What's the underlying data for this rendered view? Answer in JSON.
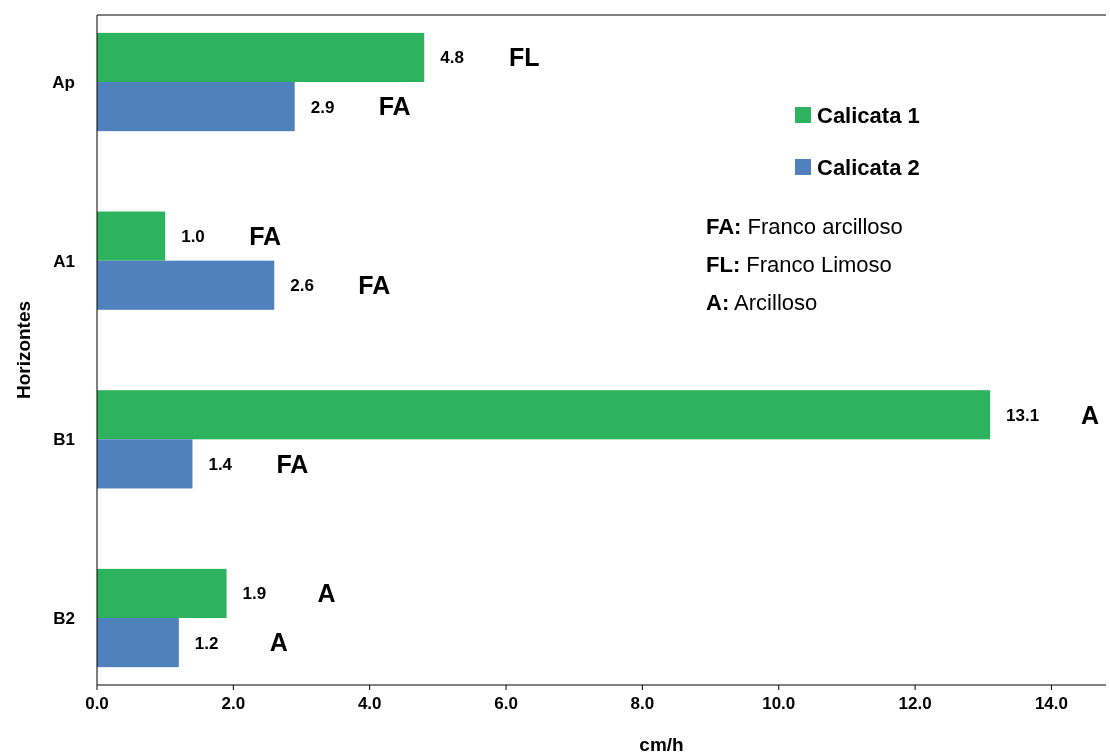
{
  "chart_data": {
    "type": "bar",
    "orientation": "horizontal",
    "xlabel": "cm/h",
    "ylabel": "Horizontes",
    "categories": [
      "Ap",
      "A1",
      "B1",
      "B2"
    ],
    "series": [
      {
        "name": "Calicata 1",
        "color": "#2db35d",
        "values": [
          4.8,
          1.0,
          13.1,
          1.9
        ],
        "value_labels": [
          "4.8",
          "1.0",
          "13.1",
          "1.9"
        ]
      },
      {
        "name": "Calicata 2",
        "color": "#4f81bd",
        "values": [
          2.9,
          2.6,
          1.4,
          1.2
        ],
        "value_labels": [
          "2.9",
          "2.6",
          "1.4",
          "1.2"
        ]
      }
    ],
    "xlim": [
      0,
      14.8
    ],
    "xticks": [
      {
        "value": 0,
        "label": "0.0"
      },
      {
        "value": 2,
        "label": "2.0"
      },
      {
        "value": 4,
        "label": "4.0"
      },
      {
        "value": 6,
        "label": "6.0"
      },
      {
        "value": 8,
        "label": "8.0"
      },
      {
        "value": 10,
        "label": "10.0"
      },
      {
        "value": 12,
        "label": "12.0"
      },
      {
        "value": 14,
        "label": "14.0"
      }
    ],
    "grid": false,
    "legend": "top right",
    "annotations": [
      "FL",
      "FA",
      "FA",
      "FA",
      "A",
      "FA",
      "A",
      "A",
      "FA: Franco arcilloso",
      "FL: Franco Limoso",
      "A: Arcilloso"
    ]
  }
}
